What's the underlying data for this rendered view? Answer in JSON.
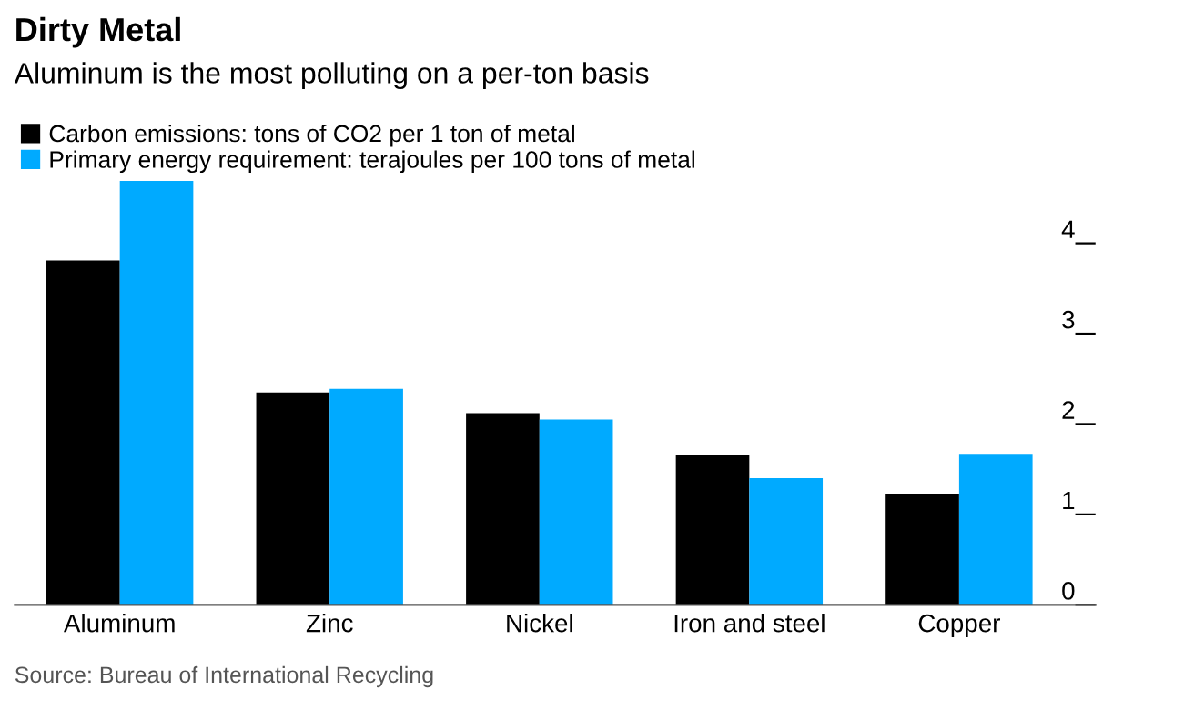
{
  "chart_data": {
    "type": "bar",
    "title": "Dirty Metal",
    "subtitle": "Aluminum is the most polluting on a per-ton basis",
    "categories": [
      "Aluminum",
      "Zinc",
      "Nickel",
      "Iron and steel",
      "Copper"
    ],
    "series": [
      {
        "name": "Carbon emissions: tons of CO2 per 1 ton of metal",
        "color": "#000000",
        "values": [
          3.81,
          2.35,
          2.12,
          1.66,
          1.23
        ]
      },
      {
        "name": "Primary energy requirement: terajoules per 100 tons of metal",
        "color": "#00aaff",
        "values": [
          4.69,
          2.39,
          2.05,
          1.4,
          1.67
        ]
      }
    ],
    "ylim": [
      0,
      4.7
    ],
    "yticks": [
      0,
      1,
      2,
      3,
      4
    ],
    "grid": false,
    "legend": "top left",
    "annotations": [
      "Source: Bureau of International Recycling"
    ]
  }
}
